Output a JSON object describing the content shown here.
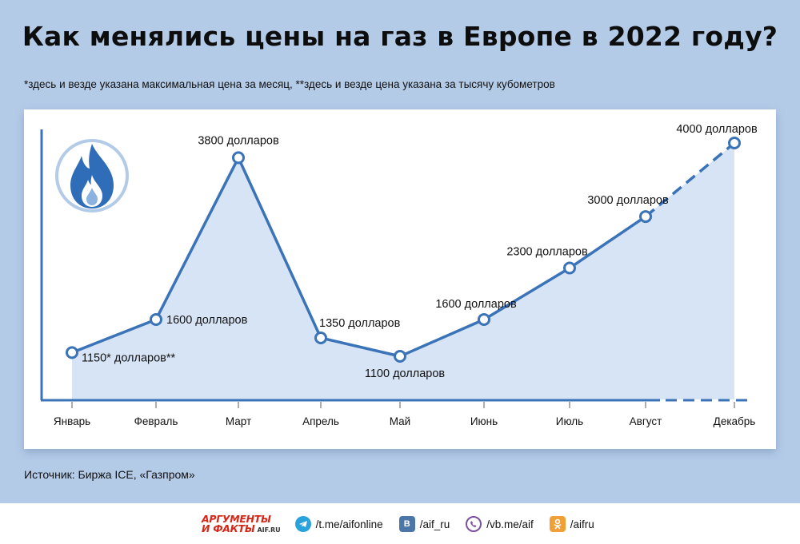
{
  "title": "Как менялись цены на газ в Европе в 2022 году?",
  "footnote": "*здесь и везде указана максимальная цена за месяц, **здесь и везде цена указана за тысячу кубометров",
  "source": "Источник: Биржа ICE, «Газпром»",
  "colors": {
    "background": "#b4cbe8",
    "line": "#3a73b8",
    "area": "#d6e4f5",
    "icon_circle": "#ffffff",
    "flame": "#2f6db8"
  },
  "icon": "gas-flame-icon",
  "chart_data": {
    "type": "line",
    "categories": [
      "Январь",
      "Февраль",
      "Март",
      "Апрель",
      "Май",
      "Июнь",
      "Июль",
      "Август",
      "Декабрь"
    ],
    "values": [
      1150,
      1600,
      3800,
      1350,
      1100,
      1600,
      2300,
      3000,
      4000
    ],
    "labels": [
      "1150* долларов**",
      "1600 долларов",
      "3800 долларов",
      "1350 долларов",
      "1100 долларов",
      "1600 долларов",
      "2300 долларов",
      "3000 долларов",
      "4000 долларов"
    ],
    "dashed_segment": [
      "Август",
      "Декабрь"
    ],
    "grid": false,
    "legend": "none"
  },
  "footer": {
    "logo_top": "АРГУМЕНТЫ",
    "logo_bottom": "И ФАКТЫ",
    "logo_url": "AIF.RU",
    "links": [
      {
        "icon": "telegram-icon",
        "text": "/t.me/aifonline"
      },
      {
        "icon": "vk-icon",
        "text": "/aif_ru"
      },
      {
        "icon": "viber-icon",
        "text": "/vb.me/aif"
      },
      {
        "icon": "odnoklassniki-icon",
        "text": "/aifru"
      }
    ]
  }
}
